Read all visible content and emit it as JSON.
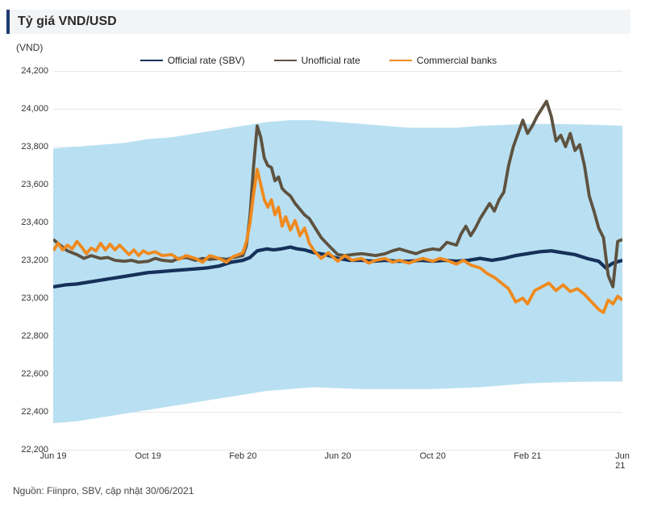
{
  "chart": {
    "type": "line",
    "title": "Tỷ giá VND/USD",
    "y_unit_label": "(VND)",
    "source_text": "Nguồn: Fiinpro, SBV, cập nhật 30/06/2021",
    "background_color": "#ffffff",
    "band_fill_color": "#b9e0f2",
    "grid_color": "#e5e7ea",
    "axis_font_size": 11,
    "title_font_size": 16,
    "title_color": "#2b2b2b",
    "title_bar_bg": "#f3f4f6",
    "title_bar_accent": "#1e3a6e",
    "legend": {
      "items": [
        {
          "label": "Official rate (SBV)",
          "color": "#15315b"
        },
        {
          "label": "Unofficial rate",
          "color": "#5e5240"
        },
        {
          "label": "Commercial banks",
          "color": "#ef8a1f"
        }
      ],
      "font_size": 12
    },
    "ylim": [
      22200,
      24200
    ],
    "ytick_step": 200,
    "yticks": [
      22200,
      22400,
      22600,
      22800,
      23000,
      23200,
      23400,
      23600,
      23800,
      24000,
      24200
    ],
    "xlim": [
      0,
      24
    ],
    "xticks": [
      {
        "pos": 0,
        "label": "Jun 19"
      },
      {
        "pos": 4,
        "label": "Oct 19"
      },
      {
        "pos": 8,
        "label": "Feb 20"
      },
      {
        "pos": 12,
        "label": "Jun 20"
      },
      {
        "pos": 16,
        "label": "Oct 20"
      },
      {
        "pos": 20,
        "label": "Feb 21"
      },
      {
        "pos": 24,
        "label": "Jun 21"
      }
    ],
    "band": {
      "upper": [
        23790,
        23800,
        23810,
        23820,
        23840,
        23850,
        23870,
        23890,
        23910,
        23930,
        23940,
        23940,
        23930,
        23920,
        23910,
        23900,
        23900,
        23900,
        23910,
        23915,
        23920,
        23920,
        23918,
        23915,
        23910
      ],
      "lower": [
        22340,
        22350,
        22370,
        22390,
        22410,
        22430,
        22450,
        22470,
        22490,
        22510,
        22520,
        22530,
        22525,
        22520,
        22520,
        22520,
        22520,
        22525,
        22530,
        22540,
        22550,
        22555,
        22558,
        22560,
        22560
      ]
    },
    "series": [
      {
        "name": "Official rate (SBV)",
        "color": "#15315b",
        "width": 2,
        "data": [
          [
            0,
            23060
          ],
          [
            0.5,
            23070
          ],
          [
            1,
            23075
          ],
          [
            1.5,
            23085
          ],
          [
            2,
            23095
          ],
          [
            2.5,
            23105
          ],
          [
            3,
            23115
          ],
          [
            3.5,
            23125
          ],
          [
            4,
            23135
          ],
          [
            4.5,
            23140
          ],
          [
            5,
            23145
          ],
          [
            5.5,
            23150
          ],
          [
            6,
            23155
          ],
          [
            6.5,
            23160
          ],
          [
            7,
            23170
          ],
          [
            7.5,
            23190
          ],
          [
            8,
            23200
          ],
          [
            8.3,
            23215
          ],
          [
            8.6,
            23250
          ],
          [
            9,
            23260
          ],
          [
            9.3,
            23255
          ],
          [
            9.6,
            23260
          ],
          [
            10,
            23270
          ],
          [
            10.3,
            23260
          ],
          [
            10.6,
            23255
          ],
          [
            11,
            23240
          ],
          [
            11.5,
            23230
          ],
          [
            12,
            23210
          ],
          [
            12.5,
            23200
          ],
          [
            13,
            23200
          ],
          [
            13.5,
            23195
          ],
          [
            14,
            23200
          ],
          [
            14.5,
            23195
          ],
          [
            15,
            23195
          ],
          [
            15.5,
            23200
          ],
          [
            16,
            23195
          ],
          [
            16.5,
            23200
          ],
          [
            17,
            23195
          ],
          [
            17.5,
            23200
          ],
          [
            18,
            23210
          ],
          [
            18.5,
            23200
          ],
          [
            19,
            23210
          ],
          [
            19.5,
            23225
          ],
          [
            20,
            23235
          ],
          [
            20.5,
            23245
          ],
          [
            21,
            23250
          ],
          [
            21.5,
            23240
          ],
          [
            22,
            23230
          ],
          [
            22.5,
            23210
          ],
          [
            23,
            23195
          ],
          [
            23.3,
            23160
          ],
          [
            23.6,
            23185
          ],
          [
            24,
            23200
          ]
        ]
      },
      {
        "name": "Unofficial rate",
        "color": "#5e5240",
        "width": 1.8,
        "data": [
          [
            0,
            23310
          ],
          [
            0.3,
            23280
          ],
          [
            0.6,
            23250
          ],
          [
            1,
            23230
          ],
          [
            1.3,
            23210
          ],
          [
            1.6,
            23225
          ],
          [
            2,
            23210
          ],
          [
            2.3,
            23215
          ],
          [
            2.6,
            23200
          ],
          [
            3,
            23195
          ],
          [
            3.3,
            23200
          ],
          [
            3.6,
            23190
          ],
          [
            4,
            23195
          ],
          [
            4.3,
            23210
          ],
          [
            4.6,
            23200
          ],
          [
            5,
            23195
          ],
          [
            5.3,
            23210
          ],
          [
            5.6,
            23215
          ],
          [
            6,
            23200
          ],
          [
            6.3,
            23210
          ],
          [
            6.6,
            23205
          ],
          [
            7,
            23210
          ],
          [
            7.3,
            23205
          ],
          [
            7.6,
            23215
          ],
          [
            8,
            23225
          ],
          [
            8.15,
            23280
          ],
          [
            8.3,
            23440
          ],
          [
            8.45,
            23700
          ],
          [
            8.6,
            23910
          ],
          [
            8.75,
            23850
          ],
          [
            8.9,
            23740
          ],
          [
            9.05,
            23700
          ],
          [
            9.2,
            23690
          ],
          [
            9.35,
            23620
          ],
          [
            9.5,
            23640
          ],
          [
            9.65,
            23580
          ],
          [
            9.8,
            23560
          ],
          [
            10,
            23540
          ],
          [
            10.2,
            23500
          ],
          [
            10.4,
            23470
          ],
          [
            10.6,
            23440
          ],
          [
            10.8,
            23420
          ],
          [
            11,
            23380
          ],
          [
            11.3,
            23320
          ],
          [
            11.6,
            23280
          ],
          [
            12,
            23230
          ],
          [
            12.3,
            23225
          ],
          [
            12.6,
            23230
          ],
          [
            13,
            23235
          ],
          [
            13.3,
            23230
          ],
          [
            13.6,
            23225
          ],
          [
            14,
            23235
          ],
          [
            14.3,
            23250
          ],
          [
            14.6,
            23260
          ],
          [
            15,
            23245
          ],
          [
            15.3,
            23235
          ],
          [
            15.6,
            23250
          ],
          [
            16,
            23260
          ],
          [
            16.3,
            23255
          ],
          [
            16.6,
            23295
          ],
          [
            17,
            23280
          ],
          [
            17.2,
            23340
          ],
          [
            17.4,
            23380
          ],
          [
            17.6,
            23330
          ],
          [
            17.8,
            23370
          ],
          [
            18,
            23420
          ],
          [
            18.2,
            23460
          ],
          [
            18.4,
            23500
          ],
          [
            18.6,
            23460
          ],
          [
            18.8,
            23520
          ],
          [
            19,
            23560
          ],
          [
            19.2,
            23700
          ],
          [
            19.4,
            23800
          ],
          [
            19.6,
            23870
          ],
          [
            19.8,
            23940
          ],
          [
            20,
            23870
          ],
          [
            20.2,
            23910
          ],
          [
            20.4,
            23960
          ],
          [
            20.6,
            24000
          ],
          [
            20.8,
            24040
          ],
          [
            21,
            23960
          ],
          [
            21.2,
            23830
          ],
          [
            21.4,
            23860
          ],
          [
            21.6,
            23800
          ],
          [
            21.8,
            23870
          ],
          [
            22,
            23780
          ],
          [
            22.2,
            23810
          ],
          [
            22.4,
            23700
          ],
          [
            22.6,
            23540
          ],
          [
            22.8,
            23460
          ],
          [
            23,
            23370
          ],
          [
            23.2,
            23320
          ],
          [
            23.4,
            23120
          ],
          [
            23.6,
            23060
          ],
          [
            23.8,
            23300
          ],
          [
            24,
            23310
          ]
        ]
      },
      {
        "name": "Commercial banks",
        "color": "#ef8a1f",
        "width": 1.8,
        "data": [
          [
            0,
            23250
          ],
          [
            0.2,
            23290
          ],
          [
            0.4,
            23255
          ],
          [
            0.6,
            23280
          ],
          [
            0.8,
            23260
          ],
          [
            1,
            23300
          ],
          [
            1.2,
            23270
          ],
          [
            1.4,
            23235
          ],
          [
            1.6,
            23265
          ],
          [
            1.8,
            23250
          ],
          [
            2,
            23290
          ],
          [
            2.2,
            23255
          ],
          [
            2.4,
            23285
          ],
          [
            2.6,
            23255
          ],
          [
            2.8,
            23280
          ],
          [
            3,
            23255
          ],
          [
            3.2,
            23230
          ],
          [
            3.4,
            23255
          ],
          [
            3.6,
            23225
          ],
          [
            3.8,
            23250
          ],
          [
            4,
            23235
          ],
          [
            4.3,
            23245
          ],
          [
            4.6,
            23225
          ],
          [
            5,
            23230
          ],
          [
            5.3,
            23205
          ],
          [
            5.6,
            23225
          ],
          [
            6,
            23210
          ],
          [
            6.3,
            23190
          ],
          [
            6.6,
            23225
          ],
          [
            7,
            23210
          ],
          [
            7.3,
            23190
          ],
          [
            7.6,
            23220
          ],
          [
            8,
            23240
          ],
          [
            8.15,
            23300
          ],
          [
            8.3,
            23400
          ],
          [
            8.45,
            23550
          ],
          [
            8.6,
            23680
          ],
          [
            8.75,
            23600
          ],
          [
            8.9,
            23520
          ],
          [
            9.05,
            23480
          ],
          [
            9.2,
            23520
          ],
          [
            9.35,
            23440
          ],
          [
            9.5,
            23480
          ],
          [
            9.65,
            23380
          ],
          [
            9.8,
            23430
          ],
          [
            10,
            23360
          ],
          [
            10.2,
            23410
          ],
          [
            10.4,
            23330
          ],
          [
            10.6,
            23370
          ],
          [
            10.8,
            23290
          ],
          [
            11,
            23250
          ],
          [
            11.3,
            23210
          ],
          [
            11.6,
            23240
          ],
          [
            12,
            23195
          ],
          [
            12.3,
            23225
          ],
          [
            12.6,
            23200
          ],
          [
            13,
            23210
          ],
          [
            13.3,
            23185
          ],
          [
            13.6,
            23200
          ],
          [
            14,
            23210
          ],
          [
            14.3,
            23190
          ],
          [
            14.6,
            23200
          ],
          [
            15,
            23185
          ],
          [
            15.3,
            23200
          ],
          [
            15.6,
            23210
          ],
          [
            16,
            23195
          ],
          [
            16.3,
            23210
          ],
          [
            16.6,
            23200
          ],
          [
            17,
            23180
          ],
          [
            17.3,
            23200
          ],
          [
            17.6,
            23175
          ],
          [
            18,
            23160
          ],
          [
            18.3,
            23130
          ],
          [
            18.6,
            23110
          ],
          [
            18.9,
            23080
          ],
          [
            19.2,
            23050
          ],
          [
            19.5,
            22980
          ],
          [
            19.8,
            23000
          ],
          [
            20,
            22970
          ],
          [
            20.3,
            23040
          ],
          [
            20.6,
            23060
          ],
          [
            20.9,
            23080
          ],
          [
            21.2,
            23040
          ],
          [
            21.5,
            23070
          ],
          [
            21.8,
            23035
          ],
          [
            22.1,
            23050
          ],
          [
            22.4,
            23020
          ],
          [
            22.7,
            22980
          ],
          [
            23,
            22940
          ],
          [
            23.2,
            22925
          ],
          [
            23.4,
            22990
          ],
          [
            23.6,
            22970
          ],
          [
            23.8,
            23010
          ],
          [
            24,
            22990
          ]
        ]
      }
    ]
  }
}
